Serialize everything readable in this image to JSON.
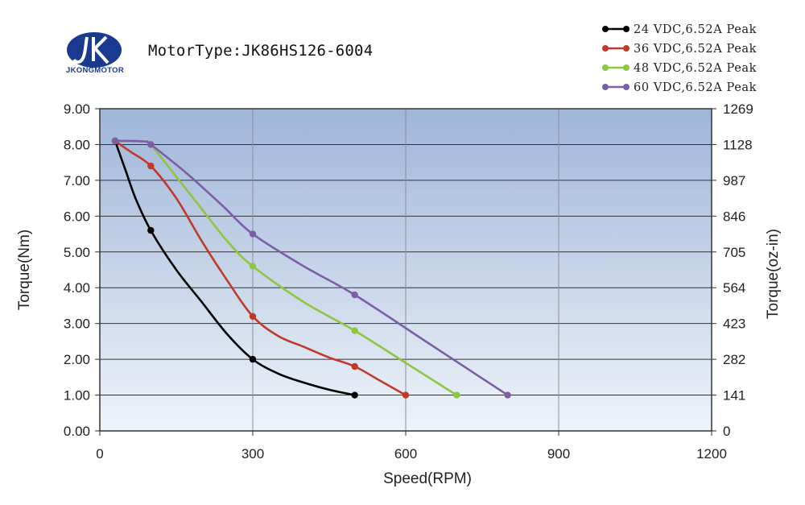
{
  "header": {
    "logo_text": "JKONGMOTOR",
    "motor_type": "MotorType:JK86HS126-6004"
  },
  "chart_data": {
    "type": "line",
    "title": "MotorType:JK86HS126-6004",
    "xlabel": "Speed(RPM)",
    "ylabel": "Torque(Nm)",
    "ylabel_right": "Torque(oz-in)",
    "xlim": [
      0,
      1200
    ],
    "ylim": [
      0,
      9
    ],
    "x_ticks": [
      "0",
      "300",
      "600",
      "900",
      "1200"
    ],
    "x_tick_values": [
      0,
      300,
      600,
      900,
      1200
    ],
    "y_ticks": [
      "0.00",
      "1.00",
      "2.00",
      "3.00",
      "4.00",
      "5.00",
      "6.00",
      "7.00",
      "8.00",
      "9.00"
    ],
    "y_tick_values": [
      0,
      1,
      2,
      3,
      4,
      5,
      6,
      7,
      8,
      9
    ],
    "y2_ticks": [
      "0",
      "141",
      "282",
      "423",
      "564",
      "705",
      "846",
      "987",
      "1128",
      "1269"
    ],
    "grid": true,
    "legend_position": "top-right",
    "series": [
      {
        "name": "24 VDC,6.52A Peak",
        "color": "#000000",
        "points": [
          [
            30,
            8.1
          ],
          [
            100,
            5.6
          ],
          [
            300,
            2.0
          ],
          [
            500,
            1.0
          ]
        ],
        "curve": [
          [
            30,
            8.1
          ],
          [
            50,
            7.3
          ],
          [
            70,
            6.5
          ],
          [
            100,
            5.6
          ],
          [
            150,
            4.5
          ],
          [
            200,
            3.6
          ],
          [
            250,
            2.7
          ],
          [
            300,
            2.0
          ],
          [
            350,
            1.6
          ],
          [
            400,
            1.35
          ],
          [
            450,
            1.15
          ],
          [
            500,
            1.0
          ]
        ]
      },
      {
        "name": "36 VDC,6.52A Peak",
        "color": "#c0392b",
        "points": [
          [
            30,
            8.1
          ],
          [
            100,
            7.4
          ],
          [
            300,
            3.2
          ],
          [
            500,
            1.8
          ],
          [
            600,
            1.0
          ]
        ],
        "curve": [
          [
            30,
            8.1
          ],
          [
            60,
            7.8
          ],
          [
            100,
            7.4
          ],
          [
            150,
            6.5
          ],
          [
            200,
            5.3
          ],
          [
            250,
            4.2
          ],
          [
            300,
            3.2
          ],
          [
            350,
            2.65
          ],
          [
            400,
            2.35
          ],
          [
            450,
            2.05
          ],
          [
            500,
            1.8
          ],
          [
            550,
            1.4
          ],
          [
            600,
            1.0
          ]
        ]
      },
      {
        "name": "48 VDC,6.52A Peak",
        "color": "#8dc63f",
        "points": [
          [
            30,
            8.1
          ],
          [
            100,
            8.0
          ],
          [
            300,
            4.6
          ],
          [
            500,
            2.8
          ],
          [
            700,
            1.0
          ]
        ],
        "curve": [
          [
            30,
            8.1
          ],
          [
            60,
            8.1
          ],
          [
            90,
            8.08
          ],
          [
            100,
            8.0
          ],
          [
            150,
            7.1
          ],
          [
            200,
            6.2
          ],
          [
            250,
            5.3
          ],
          [
            300,
            4.6
          ],
          [
            400,
            3.6
          ],
          [
            500,
            2.8
          ],
          [
            600,
            1.9
          ],
          [
            700,
            1.0
          ]
        ]
      },
      {
        "name": "60 VDC,6.52A Peak",
        "color": "#7b5ea7",
        "points": [
          [
            30,
            8.1
          ],
          [
            100,
            8.0
          ],
          [
            300,
            5.5
          ],
          [
            500,
            3.8
          ],
          [
            800,
            1.0
          ]
        ],
        "curve": [
          [
            30,
            8.1
          ],
          [
            60,
            8.1
          ],
          [
            90,
            8.08
          ],
          [
            100,
            8.0
          ],
          [
            170,
            7.2
          ],
          [
            240,
            6.3
          ],
          [
            300,
            5.5
          ],
          [
            400,
            4.6
          ],
          [
            500,
            3.8
          ],
          [
            650,
            2.4
          ],
          [
            800,
            1.0
          ]
        ]
      }
    ]
  }
}
